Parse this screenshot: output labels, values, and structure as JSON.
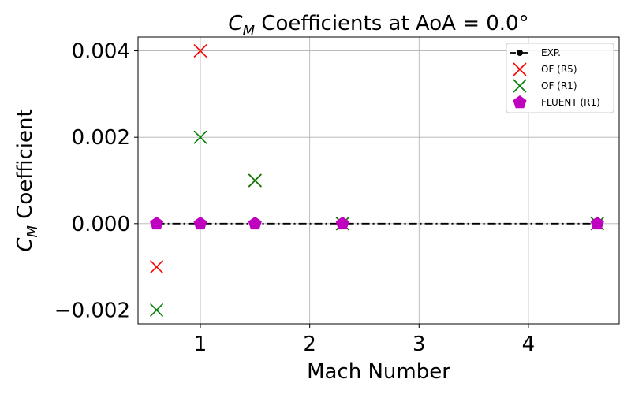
{
  "chart_data": {
    "type": "scatter",
    "title_sym": "C",
    "title_sub": "M",
    "title_rest": " Coefficients at AoA = 0.0°",
    "xlabel": "Mach Number",
    "ylabel_sym": "C",
    "ylabel_sub": "M",
    "ylabel_rest": " Coefficient",
    "xlim": [
      0.43,
      4.83
    ],
    "ylim": [
      -0.00232,
      0.00432
    ],
    "xticks": [
      1,
      2,
      3,
      4
    ],
    "xtick_labels": [
      "1",
      "2",
      "3",
      "4"
    ],
    "yticks": [
      -0.002,
      0.0,
      0.002,
      0.004
    ],
    "ytick_labels": [
      "−0.002",
      "0.000",
      "0.002",
      "0.004"
    ],
    "grid": true,
    "legend_position": "top-right",
    "series": [
      {
        "name": "EXP.",
        "marker": "dot-dashdot-line",
        "color": "#000000",
        "x": [
          0.6,
          1.0,
          1.5,
          2.3,
          4.63
        ],
        "y": [
          0.0,
          0.0,
          0.0,
          0.0,
          0.0
        ]
      },
      {
        "name": "OF (R5)",
        "marker": "x",
        "color": "#ff0000",
        "x": [
          0.6,
          1.0,
          1.5,
          2.3,
          4.63
        ],
        "y": [
          -0.001,
          0.004,
          0.001,
          0.0,
          0.0
        ]
      },
      {
        "name": "OF (R1)",
        "marker": "x",
        "color": "#008000",
        "x": [
          0.6,
          1.0,
          1.5,
          2.3,
          4.63
        ],
        "y": [
          -0.002,
          0.002,
          0.001,
          0.0,
          0.0
        ]
      },
      {
        "name": "FLUENT (R1)",
        "marker": "pentagon",
        "color": "#bf00bf",
        "x": [
          0.6,
          1.0,
          1.5,
          2.3,
          4.63
        ],
        "y": [
          0.0,
          0.0,
          0.0,
          0.0,
          0.0
        ]
      }
    ]
  }
}
